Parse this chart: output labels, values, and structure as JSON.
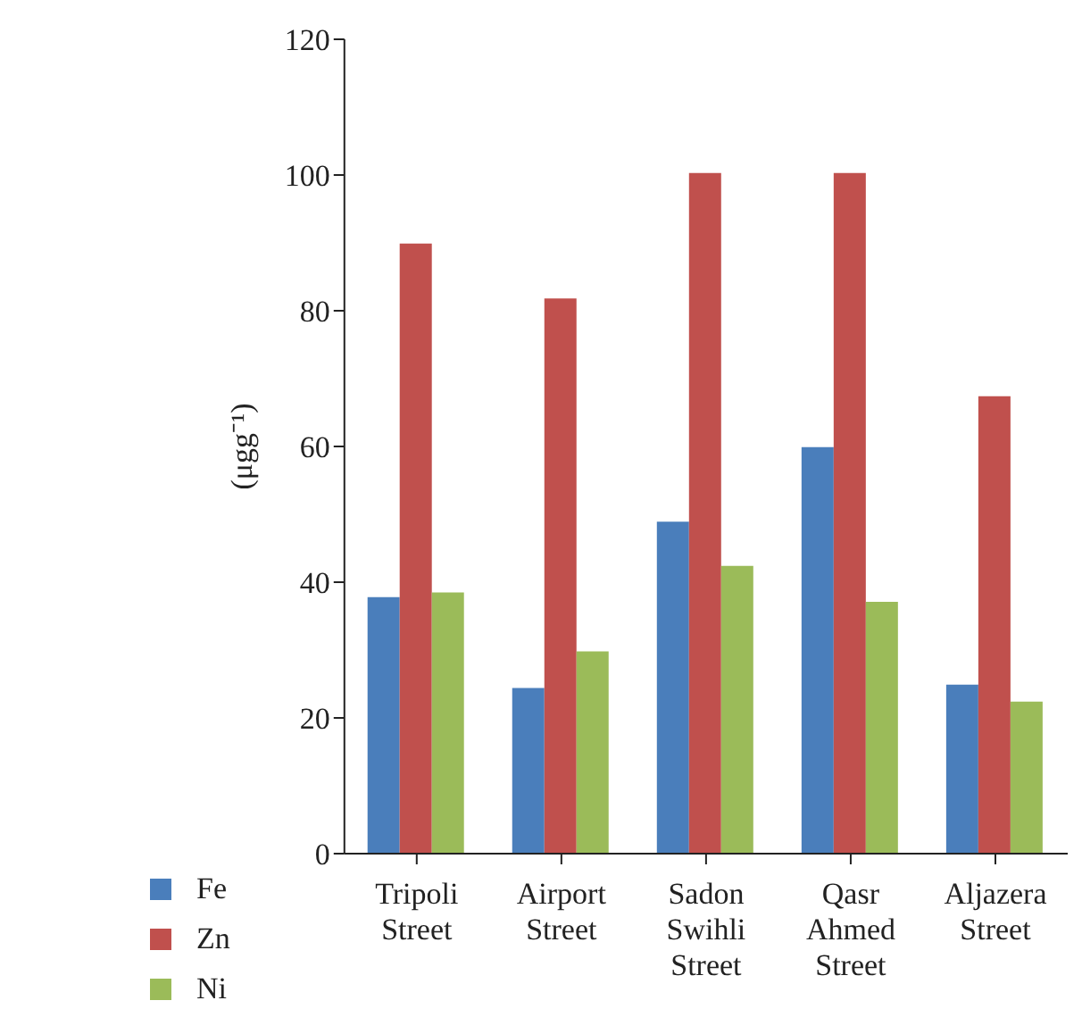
{
  "chart_data": {
    "type": "bar",
    "ylabel": "(μgg⁻¹)",
    "categories": [
      "Tripoli Street",
      "Airport Street",
      "Sadon Swihli Street",
      "Qasr Ahmed Street",
      "Aljazera Street"
    ],
    "series": [
      {
        "name": "Fe",
        "color": "#4a7ebb",
        "values": [
          37.8,
          24.4,
          48.9,
          59.9,
          24.9
        ]
      },
      {
        "name": "Zn",
        "color": "#c0504d",
        "values": [
          89.9,
          81.8,
          100.3,
          100.3,
          67.4
        ]
      },
      {
        "name": "Ni",
        "color": "#9bbb59",
        "values": [
          38.5,
          29.8,
          42.4,
          37.1,
          22.4
        ]
      }
    ],
    "ylim": [
      0,
      120
    ],
    "yticks": [
      0,
      20,
      40,
      60,
      80,
      100,
      120
    ],
    "grid": false,
    "legend": "bottom left"
  }
}
